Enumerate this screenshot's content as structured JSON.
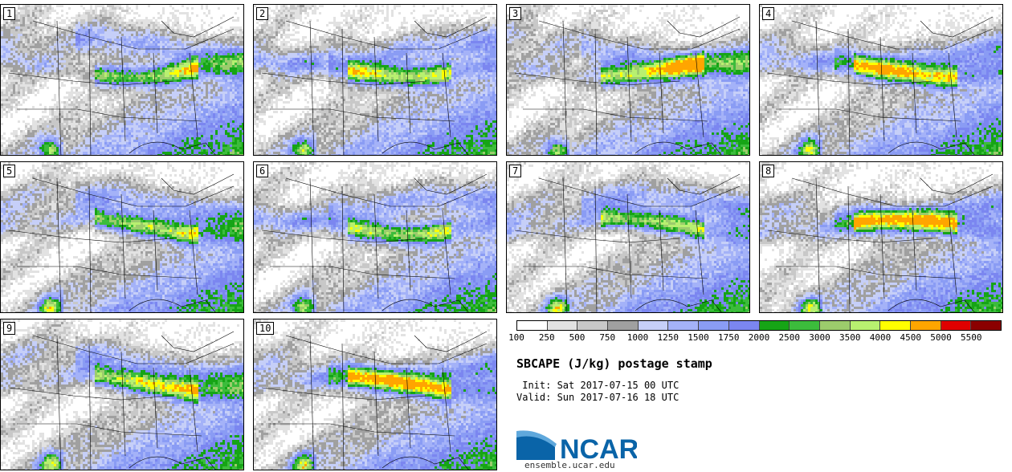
{
  "panels": [
    {
      "label": "1",
      "seed": 11
    },
    {
      "label": "2",
      "seed": 23
    },
    {
      "label": "3",
      "seed": 37
    },
    {
      "label": "4",
      "seed": 41
    },
    {
      "label": "5",
      "seed": 53
    },
    {
      "label": "6",
      "seed": 67
    },
    {
      "label": "7",
      "seed": 71
    },
    {
      "label": "8",
      "seed": 83
    },
    {
      "label": "9",
      "seed": 97
    },
    {
      "label": "10",
      "seed": 103
    }
  ],
  "colorbar": {
    "colors": [
      "#ffffff",
      "#e2e2e2",
      "#c8c8c8",
      "#a0a0a0",
      "#c6cff8",
      "#a4b2f8",
      "#8a9cf4",
      "#7b86f0",
      "#16a416",
      "#3cbc3c",
      "#9ccc6c",
      "#b8f070",
      "#ffff00",
      "#ffa500",
      "#e00000",
      "#8b0000"
    ],
    "labels": [
      "100",
      "250",
      "500",
      "750",
      "1000",
      "1250",
      "1500",
      "1750",
      "2000",
      "2500",
      "3000",
      "3500",
      "4000",
      "4500",
      "5000",
      "5500"
    ]
  },
  "title": "SBCAPE (J/kg) postage stamp",
  "init_line": " Init: Sat 2017-07-15 00 UTC",
  "valid_line": "Valid: Sun 2017-07-16 18 UTC",
  "logo_text": "NCAR",
  "url": "ensemble.ucar.edu"
}
